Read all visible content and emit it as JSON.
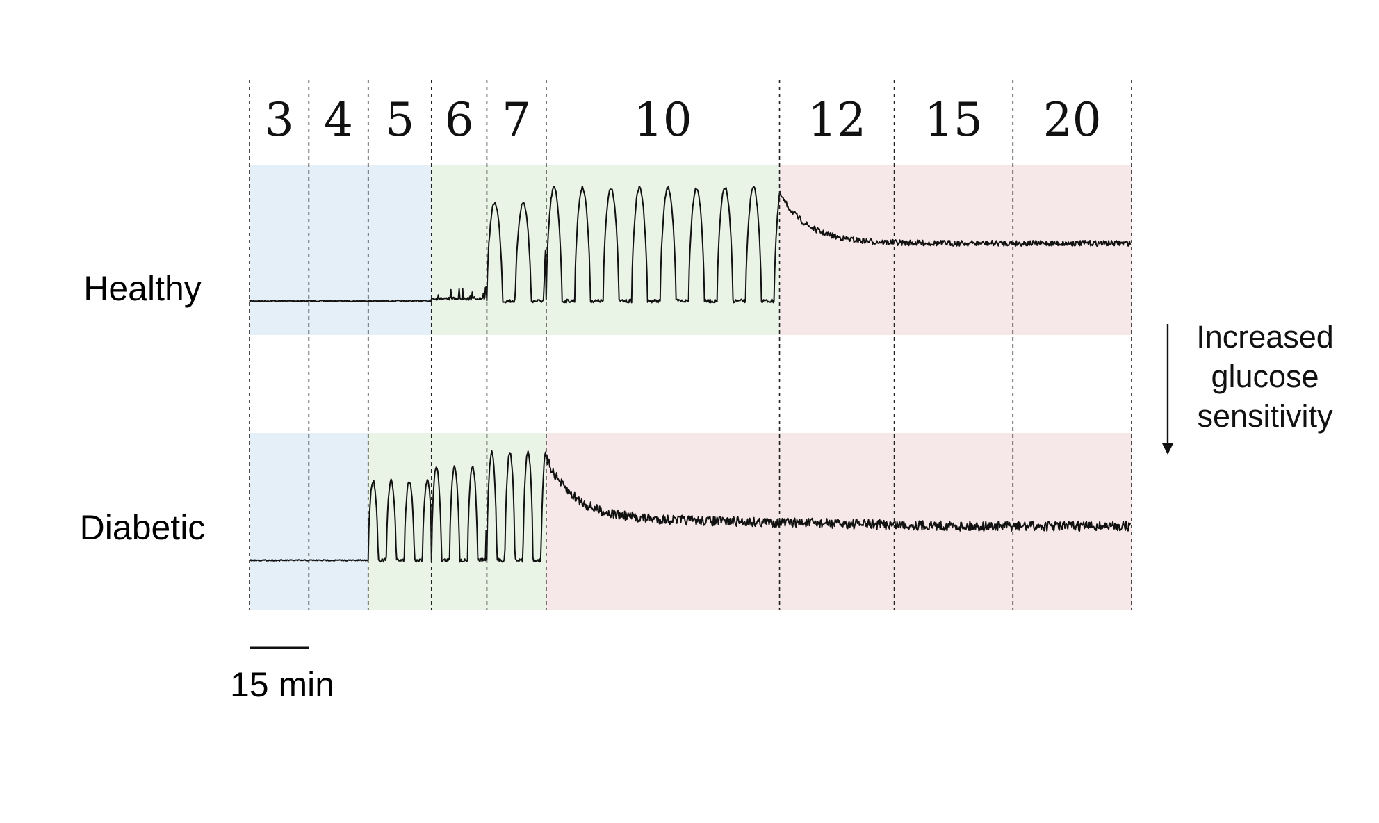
{
  "chart_data": {
    "type": "line",
    "title": "",
    "xlabel": "",
    "ylabel": "",
    "x_unit": "min",
    "scale_bar": {
      "label": "15 min",
      "minutes": 15
    },
    "glucose_levels": [
      {
        "label": "3",
        "minutes": 15
      },
      {
        "label": "4",
        "minutes": 15
      },
      {
        "label": "5",
        "minutes": 16
      },
      {
        "label": "6",
        "minutes": 14
      },
      {
        "label": "7",
        "minutes": 15
      },
      {
        "label": "10",
        "minutes": 59
      },
      {
        "label": "12",
        "minutes": 29
      },
      {
        "label": "15",
        "minutes": 30
      },
      {
        "label": "20",
        "minutes": 30
      }
    ],
    "regime_colors": {
      "blue": "#e5eff8",
      "green": "#e9f3e6",
      "red": "#f6e8e8"
    },
    "series": [
      {
        "name": "Healthy",
        "regimes": [
          {
            "from_level": "3",
            "to_level": "5",
            "regime": "blue"
          },
          {
            "from_level": "6",
            "to_level": "10",
            "regime": "green"
          },
          {
            "from_level": "12",
            "to_level": "20",
            "regime": "red"
          }
        ],
        "description": "flat baseline at 3-5; small spikes at 6-7; regular slow oscillations at 10; continuous noisy elevated activity at 12-20"
      },
      {
        "name": "Diabetic",
        "regimes": [
          {
            "from_level": "3",
            "to_level": "4",
            "regime": "blue"
          },
          {
            "from_level": "5",
            "to_level": "7",
            "regime": "green"
          },
          {
            "from_level": "10",
            "to_level": "20",
            "regime": "red"
          }
        ],
        "description": "flat baseline at 3-4; small bursts at 5; regular oscillations at 6-7; continuous noisy elevated activity from 10 onward"
      }
    ],
    "annotation": {
      "text_lines": [
        "Increased",
        "glucose",
        "sensitivity"
      ],
      "arrow_direction": "down"
    }
  }
}
